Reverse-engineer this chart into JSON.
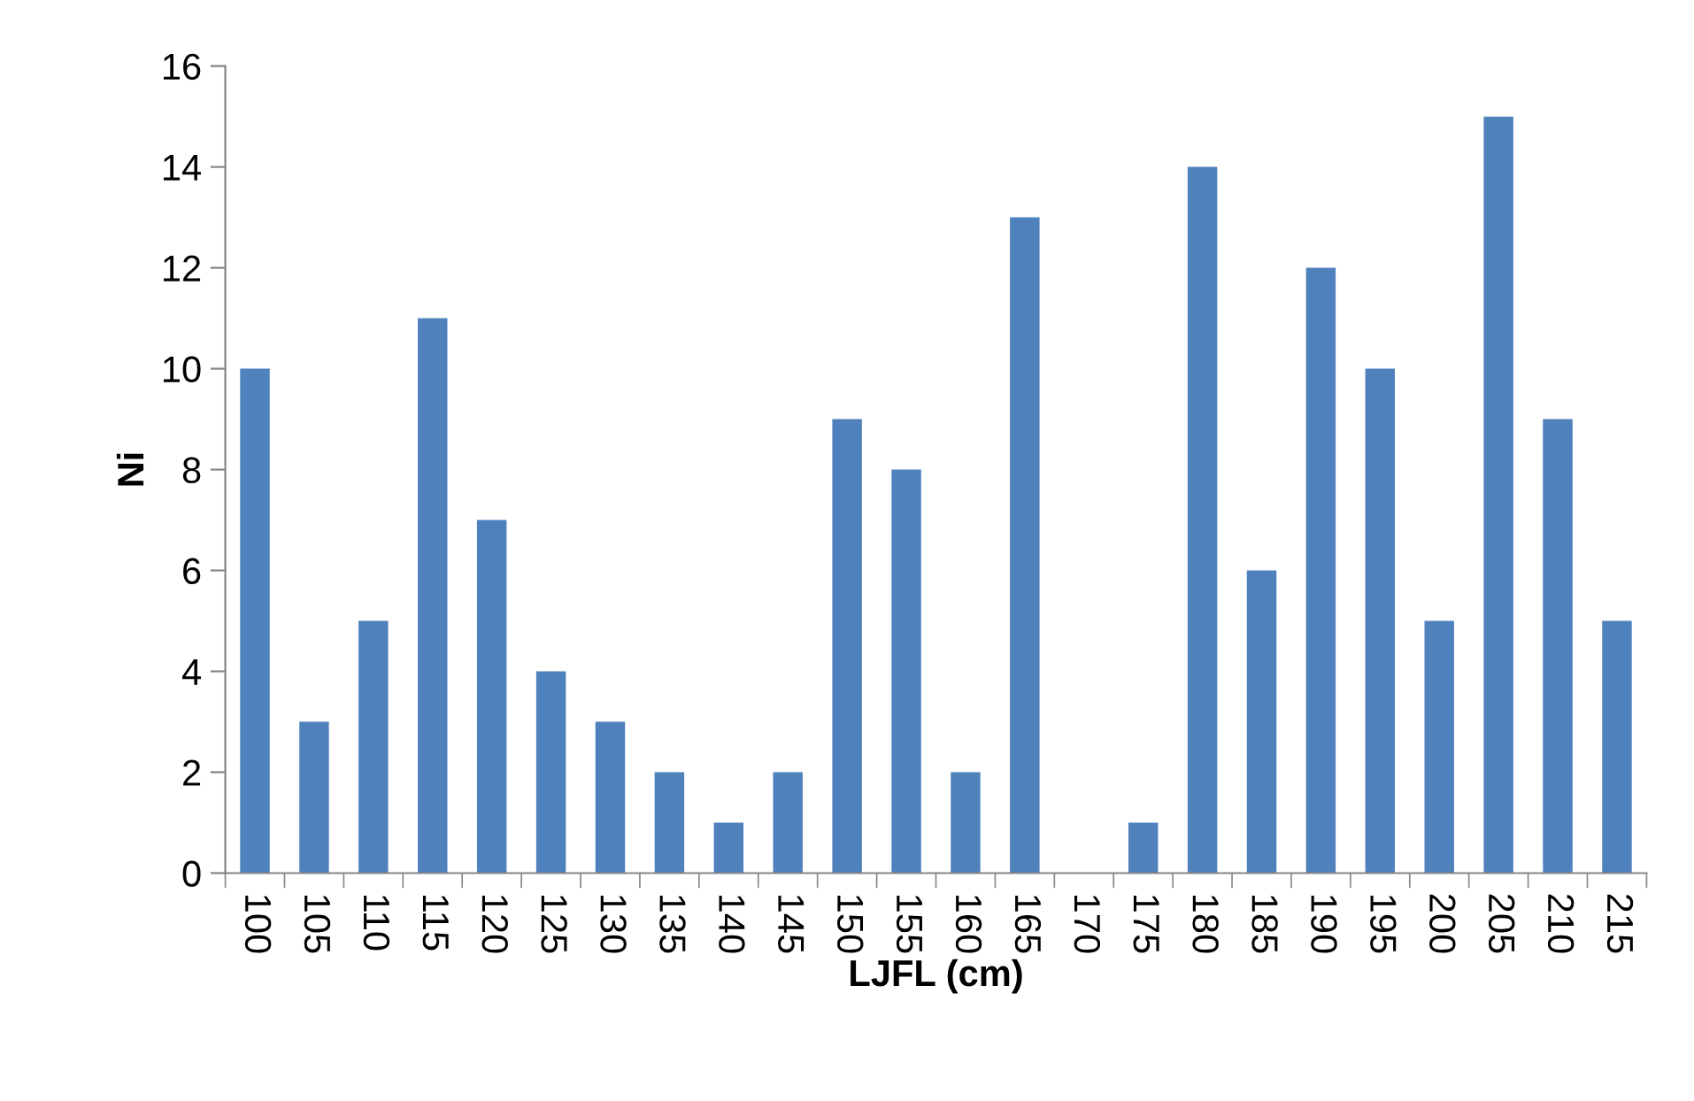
{
  "chart_data": {
    "type": "bar",
    "xlabel": "LJFL (cm)",
    "ylabel": "Ni",
    "categories": [
      "100",
      "105",
      "110",
      "115",
      "120",
      "125",
      "130",
      "135",
      "140",
      "145",
      "150",
      "155",
      "160",
      "165",
      "170",
      "175",
      "180",
      "185",
      "190",
      "195",
      "200",
      "205",
      "210",
      "215"
    ],
    "values": [
      10,
      3,
      5,
      11,
      7,
      4,
      3,
      2,
      1,
      2,
      9,
      8,
      2,
      13,
      0,
      1,
      14,
      6,
      12,
      10,
      5,
      15,
      9,
      5
    ],
    "color": "#4f81bd",
    "ylim": [
      0,
      16
    ],
    "yticks": [
      0,
      2,
      4,
      6,
      8,
      10,
      12,
      14,
      16
    ],
    "grid": false,
    "legend": false
  }
}
